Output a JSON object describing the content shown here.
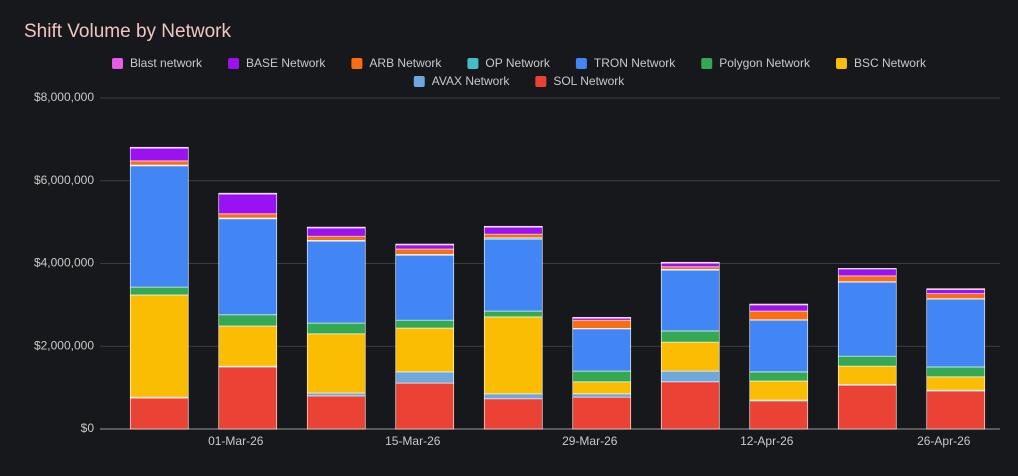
{
  "chart_data": {
    "type": "stacked-bar",
    "title": "Shift Volume by Network",
    "categories": [
      null,
      "01-Mar-26",
      null,
      "15-Mar-26",
      null,
      "29-Mar-26",
      null,
      "12-Apr-26",
      null,
      "26-Apr-26"
    ],
    "ylim": [
      0,
      8000000
    ],
    "yticks": [
      {
        "value": 0,
        "label": "$0"
      },
      {
        "value": 2000000,
        "label": "$2,000,000"
      },
      {
        "value": 4000000,
        "label": "$4,000,000"
      },
      {
        "value": 6000000,
        "label": "$6,000,000"
      },
      {
        "value": 8000000,
        "label": "$8,000,000"
      }
    ],
    "grid": true,
    "legend": "top",
    "series": [
      {
        "name": "Blast network",
        "color": "#e45ce8",
        "values": [
          20000,
          20000,
          20000,
          20000,
          20000,
          20000,
          20000,
          20000,
          10000,
          20000
        ]
      },
      {
        "name": "BASE Network",
        "color": "#9b12f2",
        "values": [
          310000,
          480000,
          200000,
          100000,
          170000,
          50000,
          90000,
          150000,
          170000,
          100000
        ]
      },
      {
        "name": "ARB Network",
        "color": "#fb6d12",
        "values": [
          100000,
          100000,
          100000,
          130000,
          90000,
          200000,
          60000,
          210000,
          140000,
          120000
        ]
      },
      {
        "name": "OP Network",
        "color": "#46bdc6",
        "values": [
          20000,
          20000,
          20000,
          20000,
          30000,
          10000,
          20000,
          10000,
          10000,
          10000
        ]
      },
      {
        "name": "TRON Network",
        "color": "#4285f4",
        "values": [
          2930000,
          2320000,
          1980000,
          1570000,
          1740000,
          1020000,
          1470000,
          1250000,
          1790000,
          1640000
        ]
      },
      {
        "name": "Polygon Network",
        "color": "#34a853",
        "values": [
          190000,
          270000,
          260000,
          190000,
          140000,
          260000,
          270000,
          220000,
          240000,
          240000
        ]
      },
      {
        "name": "BSC Network",
        "color": "#fbbc04",
        "values": [
          2470000,
          970000,
          1430000,
          1060000,
          1860000,
          290000,
          700000,
          460000,
          440000,
          320000
        ]
      },
      {
        "name": "AVAX Network",
        "color": "#6fa8dc",
        "values": [
          20000,
          20000,
          70000,
          270000,
          120000,
          80000,
          260000,
          20000,
          20000,
          20000
        ]
      },
      {
        "name": "SOL Network",
        "color": "#ea4335",
        "values": [
          750000,
          1500000,
          800000,
          1110000,
          730000,
          770000,
          1140000,
          680000,
          1060000,
          920000
        ]
      }
    ]
  }
}
